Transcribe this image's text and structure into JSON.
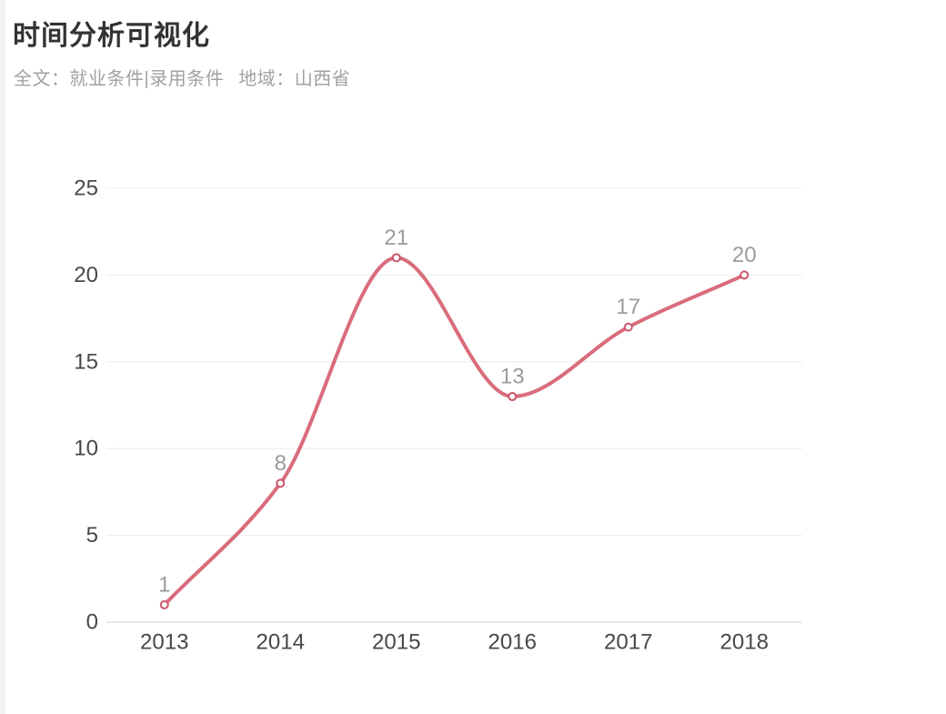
{
  "header": {
    "title": "时间分析可视化",
    "filters": {
      "fulltext_label": "全文：",
      "fulltext_value": "就业条件|录用条件",
      "region_label": "地域：",
      "region_value": "山西省"
    }
  },
  "chart_data": {
    "type": "line",
    "title": "",
    "xlabel": "",
    "ylabel": "",
    "categories": [
      "2013",
      "2014",
      "2015",
      "2016",
      "2017",
      "2018"
    ],
    "values": [
      1,
      8,
      21,
      13,
      17,
      20
    ],
    "ylim": [
      0,
      25
    ],
    "y_ticks": [
      0,
      5,
      10,
      15,
      20,
      25
    ],
    "grid": true,
    "smooth": true,
    "legend": "none",
    "colors": {
      "line": "#d96c7c",
      "marker_fill": "#ffffff",
      "marker_stroke": "#c9566b",
      "data_label": "#9b9ba1",
      "axis_label": "#47474d",
      "gridline": "#ececee",
      "axis_line": "#d6d6da"
    },
    "marker_radius": 4
  }
}
